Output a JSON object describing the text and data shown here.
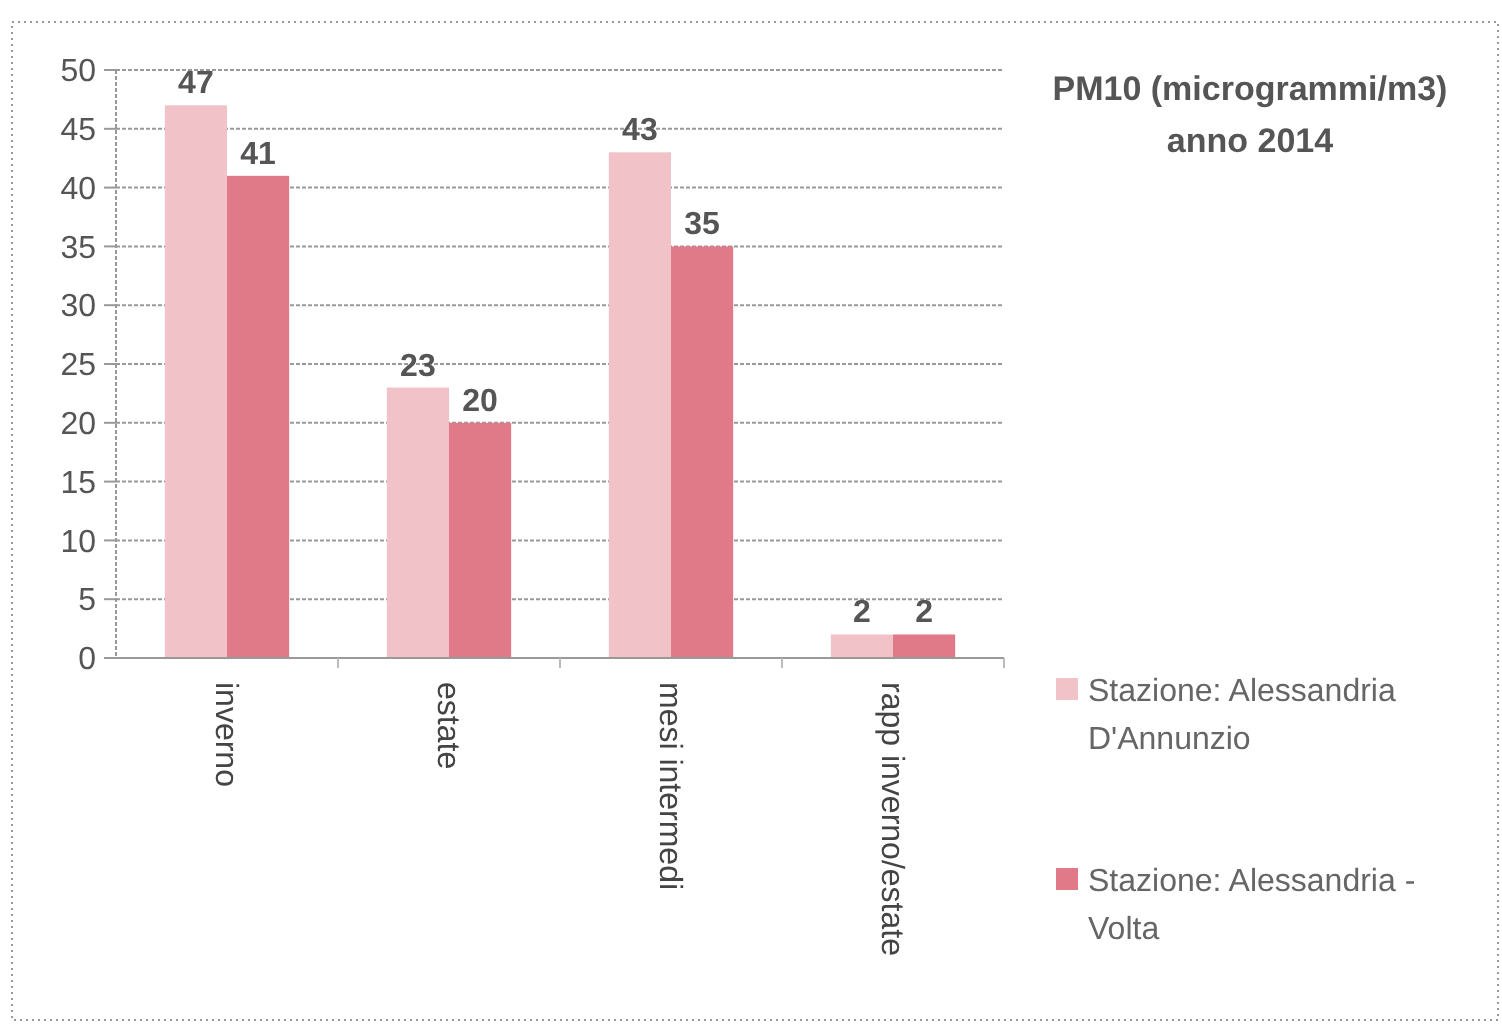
{
  "chart_data": {
    "type": "bar",
    "title": "PM10 (microgrammi/m3)\nanno 2014",
    "categories": [
      "inverno",
      "estate",
      "mesi intermedi",
      "rapp inverno/estate"
    ],
    "series": [
      {
        "name": "Stazione: Alessandria D'Annunzio",
        "color": "#f2c2c9",
        "values": [
          47,
          23,
          43,
          2
        ]
      },
      {
        "name": "Stazione: Alessandria - Volta",
        "color": "#e07a88",
        "values": [
          41,
          20,
          35,
          2
        ]
      }
    ],
    "ylim": [
      0,
      50
    ],
    "yticks": [
      0,
      5,
      10,
      15,
      20,
      25,
      30,
      35,
      40,
      45,
      50
    ],
    "grid": "y",
    "legend": "right",
    "data_labels": true
  }
}
